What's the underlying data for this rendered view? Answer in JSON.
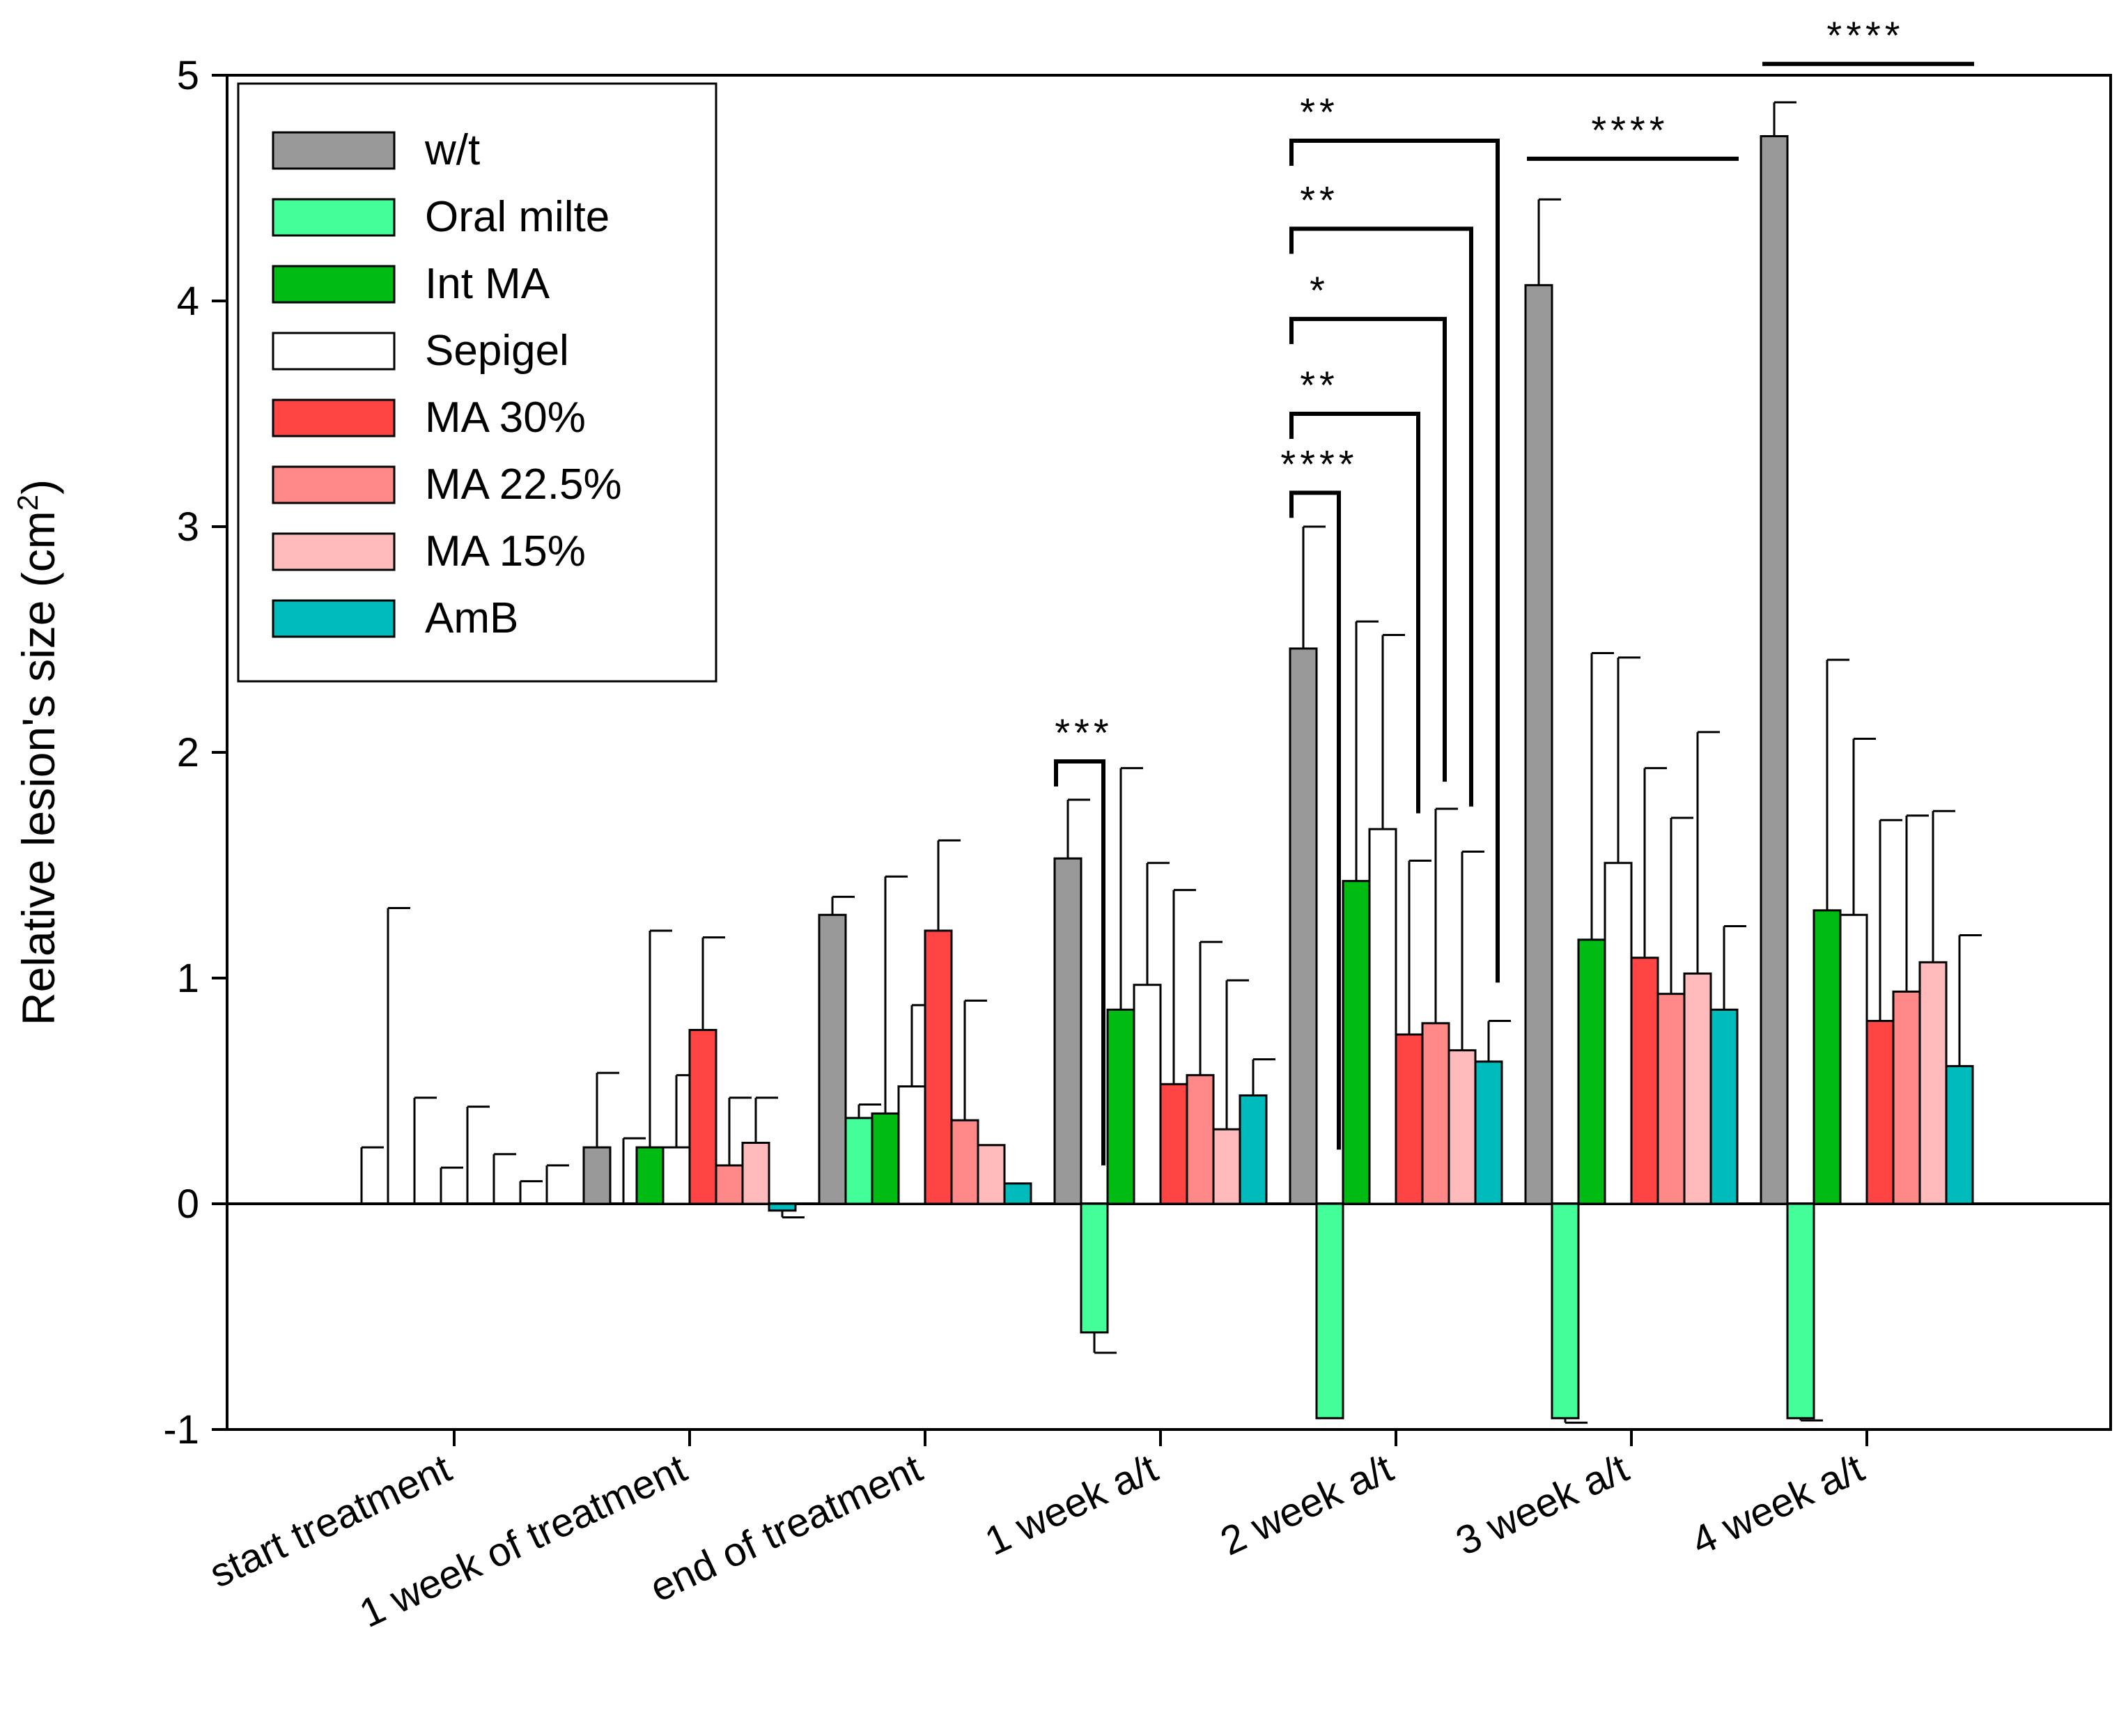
{
  "chart_data": {
    "type": "bar",
    "title": "",
    "ylabel": "Relative lesion's size (cm",
    "ylabel_sup": "2",
    "ylabel_close": ")",
    "xlabel": "",
    "ylim": [
      -1,
      5
    ],
    "yticks": [
      -1,
      0,
      1,
      2,
      3,
      4,
      5
    ],
    "ytick_labels": [
      "-1",
      "0",
      "1",
      "2",
      "3",
      "4",
      "5"
    ],
    "grid": false,
    "legend_position": "top-left",
    "categories": [
      "start treatment",
      "1 week of treatment",
      "end of treatment",
      "1 week a/t",
      "2 week a/t",
      "3 week a/t",
      "4 week a/t"
    ],
    "series": [
      {
        "name": "w/t",
        "color": "#999999",
        "values": [
          0,
          0.25,
          1.28,
          1.53,
          2.46,
          4.07,
          4.73
        ],
        "errors": [
          0.25,
          0.33,
          0.08,
          0.26,
          0.54,
          0.38,
          0.15
        ]
      },
      {
        "name": "Oral milte",
        "color": "#44ff99",
        "values": [
          0,
          0,
          0.38,
          -0.57,
          -0.95,
          -0.95,
          -0.95
        ],
        "errors": [
          1.31,
          0.29,
          0.06,
          0.09,
          0.0,
          0.02,
          0.01
        ]
      },
      {
        "name": "Int MA",
        "color": "#00bb11",
        "values": [
          0,
          0.25,
          0.4,
          0.86,
          1.43,
          1.17,
          1.3
        ],
        "errors": [
          0.47,
          0.96,
          1.05,
          1.07,
          1.15,
          1.27,
          1.11
        ]
      },
      {
        "name": "Sepigel",
        "color": "#ffffff",
        "values": [
          0,
          0.25,
          0.52,
          0.97,
          1.66,
          1.51,
          1.28
        ],
        "errors": [
          0.16,
          0.32,
          0.36,
          0.54,
          0.86,
          0.91,
          0.78
        ]
      },
      {
        "name": "MA 30%",
        "color": "#ff4444",
        "values": [
          0,
          0.77,
          1.21,
          0.53,
          0.75,
          1.09,
          0.81
        ],
        "errors": [
          0.43,
          0.41,
          0.4,
          0.86,
          0.77,
          0.84,
          0.89
        ]
      },
      {
        "name": "MA 22.5%",
        "color": "#ff8888",
        "values": [
          0,
          0.17,
          0.37,
          0.57,
          0.8,
          0.93,
          0.94
        ],
        "errors": [
          0.22,
          0.3,
          0.53,
          0.59,
          0.95,
          0.78,
          0.78
        ]
      },
      {
        "name": "MA 15%",
        "color": "#ffbbbb",
        "values": [
          0,
          0.27,
          0.26,
          0.33,
          0.68,
          1.02,
          1.07
        ],
        "errors": [
          0.1,
          0.2,
          0.0,
          0.66,
          0.88,
          1.07,
          0.67
        ]
      },
      {
        "name": "AmB",
        "color": "#00bbbb",
        "values": [
          0,
          -0.03,
          0.09,
          0.48,
          0.63,
          0.86,
          0.61
        ],
        "errors": [
          0.17,
          0.03,
          0.0,
          0.16,
          0.18,
          0.37,
          0.58
        ]
      }
    ],
    "annotations": [
      {
        "group": "1 week a/t",
        "from_series": "w/t",
        "to_series": "Oral milte",
        "label": "***"
      },
      {
        "group": "2 week a/t",
        "from_series": "w/t",
        "to_series": "Oral milte",
        "label": "****"
      },
      {
        "group": "2 week a/t",
        "from_series": "w/t",
        "to_series": "MA 30%",
        "label": "**"
      },
      {
        "group": "2 week a/t",
        "from_series": "w/t",
        "to_series": "MA 22.5%",
        "label": "*"
      },
      {
        "group": "2 week a/t",
        "from_series": "w/t",
        "to_series": "MA 15%",
        "label": "**"
      },
      {
        "group": "2 week a/t",
        "from_series": "w/t",
        "to_series": "AmB",
        "label": "**"
      },
      {
        "group": "3 week a/t",
        "from_series": "w/t",
        "to_series": "AmB",
        "label": "****"
      },
      {
        "group": "4 week a/t",
        "from_series": "w/t",
        "to_series": "AmB",
        "label": "****"
      }
    ]
  }
}
